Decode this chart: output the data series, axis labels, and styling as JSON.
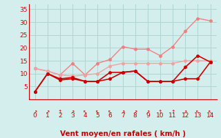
{
  "x": [
    0,
    1,
    2,
    3,
    4,
    5,
    6,
    7,
    8,
    9,
    10,
    11,
    12,
    13,
    14
  ],
  "series": [
    {
      "name": "rafales_light",
      "color": "#f08080",
      "linewidth": 1.0,
      "marker": "o",
      "markersize": 2.5,
      "linestyle": "-",
      "y": [
        12,
        11,
        9.5,
        14,
        9.5,
        14,
        15.5,
        20.5,
        19.5,
        19.5,
        17,
        20.5,
        26.5,
        31.5,
        30.5
      ]
    },
    {
      "name": "vent_moyen_light",
      "color": "#f4a0a0",
      "linewidth": 1.0,
      "marker": "o",
      "markersize": 2.5,
      "linestyle": "-",
      "y": [
        12,
        11,
        9.5,
        9,
        9.5,
        10,
        13,
        14,
        14,
        14,
        14,
        14,
        15,
        15,
        15
      ]
    },
    {
      "name": "rafales_dark",
      "color": "#cc0000",
      "linewidth": 1.2,
      "marker": "o",
      "markersize": 2.5,
      "linestyle": "-",
      "y": [
        3,
        10,
        8,
        8.5,
        7,
        7,
        10.5,
        10.5,
        11,
        7,
        7,
        7,
        12.5,
        17,
        14.5
      ]
    },
    {
      "name": "vent_moyen_dark",
      "color": "#cc0000",
      "linewidth": 1.2,
      "marker": "o",
      "markersize": 2.5,
      "linestyle": "-",
      "y": [
        3,
        10,
        7.5,
        8,
        7,
        7,
        8,
        10.5,
        11,
        7,
        7,
        7,
        8,
        8,
        14.5
      ]
    }
  ],
  "xlabel": "Vent moyen/en rafales ( km/h )",
  "xlim": [
    -0.5,
    14.5
  ],
  "ylim": [
    0,
    37
  ],
  "yticks": [
    5,
    10,
    15,
    20,
    25,
    30,
    35
  ],
  "xticks": [
    0,
    1,
    2,
    3,
    4,
    5,
    6,
    7,
    8,
    9,
    10,
    11,
    12,
    13,
    14
  ],
  "bg_color": "#d4eeee",
  "grid_color": "#aed4d4",
  "axis_color": "#cc0000",
  "xlabel_color": "#cc0000",
  "tick_label_color": "#cc0000",
  "xlabel_fontsize": 7.5,
  "tick_fontsize": 6.5,
  "fig_width": 3.2,
  "fig_height": 2.0,
  "dpi": 100
}
